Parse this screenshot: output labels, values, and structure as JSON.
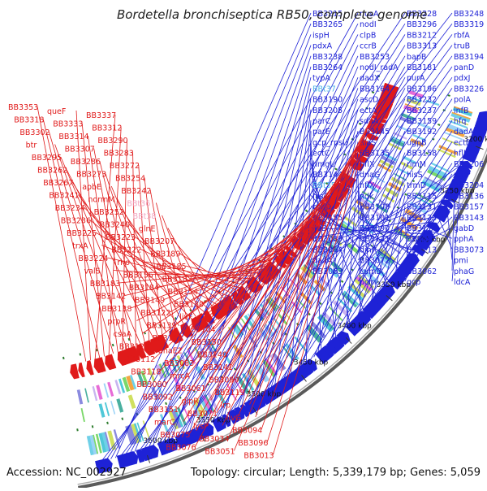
{
  "title": "Bordetella bronchiseptica RB50, complete genome",
  "footer": {
    "accession": "Accession: NC_002927",
    "summary": "Topology: circular; Length: 5,339,179 bp; Genes: 5,059"
  },
  "colors": {
    "backbone": "#808080",
    "forward_strand": "#1e22d6",
    "reverse_strand": "#e01a1a",
    "rna_label": "#4fb3e8",
    "rna_label_reverse": "#f2a6c0",
    "tick": "#2e7d2e"
  },
  "ruler_ticks": [
    "3600 kbp",
    "3550 kbp",
    "3500 kbp",
    "3450 kbp",
    "3400 kbp",
    "3350 kbp",
    "3300 kbp",
    "3250 kbp",
    "3200 kbp"
  ],
  "forward_labels": [
    "BB3248",
    "BB3228",
    "nusA",
    "BB3215",
    "BB3319",
    "BB3296",
    "nodI",
    "BB3265",
    "rbfA",
    "BB3212",
    "clpB",
    "ispH",
    "truB",
    "BB3313",
    "ccrB",
    "pdxA",
    "BB3194",
    "bapB",
    "BB3253",
    "BB3238",
    "panD",
    "BB3181",
    "nodI_radA",
    "BB3264",
    "pdxJ",
    "purA",
    "dadX",
    "typA",
    "BB3226",
    "BB3196",
    "BB3164",
    "BBt37",
    "polA",
    "BB3232",
    "ascD",
    "BB3190",
    "infB",
    "BB3237",
    "ectA",
    "BB3205",
    "hfq",
    "BB3159",
    "sdaA",
    "parC",
    "dadA",
    "BB3192",
    "BB3145",
    "parE",
    "ectB",
    "ugpB",
    "alaS",
    "gcp_rpsU",
    "hflK",
    "BB3158",
    "BB3135",
    "ectC",
    "BB3206",
    "rimM",
    "hflX",
    "hmgL",
    "rpsP",
    "hisS",
    "dnaG",
    "BB3144",
    "BB3204",
    "trmD",
    "hflX",
    "BBt35",
    "BB3136",
    "BB3115",
    "ndk",
    "hisZ",
    "BB3157",
    "BB3131",
    "BB3108",
    "rpoD",
    "BB3143",
    "BB3123",
    "BB3101",
    "BB3155",
    "gabD",
    "BB3114",
    "BB3090",
    "ilvB",
    "pphA",
    "BB3085",
    "BB3121",
    "BB3089",
    "BB3073",
    "BB3113",
    "dinP",
    "BB3064",
    "pmi",
    "fhp",
    "BB3072",
    "dadA",
    "phaG",
    "BB3062",
    "cumB",
    "BB3063",
    "ldcA",
    "gcp",
    "pcm"
  ],
  "reverse_labels": [
    "BB3353",
    "queF",
    "BB3337",
    "BB3318",
    "BB3333",
    "BB3312",
    "BB3302",
    "BB3314",
    "BB3290",
    "btr",
    "BB3307",
    "BB3283",
    "BB3295",
    "BB3286",
    "BB3272",
    "BB3262",
    "BB3273",
    "BB3254",
    "BB3267",
    "apbE",
    "BB3242",
    "BB3241",
    "normM",
    "BBt36",
    "BB3234",
    "BB3252",
    "BBt38",
    "BB3236",
    "BB3240",
    "glnE",
    "BB3225",
    "BB3223",
    "BB3207",
    "trxA",
    "BB3222",
    "BB3189",
    "BB3224",
    "rho",
    "BB3185",
    "valS",
    "BB3156",
    "BB3182",
    "BB3183",
    "BB3184",
    "BB3154",
    "BB3142",
    "BB3149",
    "BB3130",
    "BB3138",
    "BB3122",
    "livF",
    "prpR",
    "BB3139",
    "BB3104",
    "csaA",
    "BB3103",
    "BB3150",
    "BB3129",
    "dnaE2",
    "BB3140",
    "BB3112",
    "BB3083",
    "BB3141",
    "BB3118",
    "mrcA",
    "BB3099",
    "BB3080",
    "BB3061",
    "BB3119",
    "BB3092",
    "glpR",
    "lrp",
    "BB3151",
    "BB3071",
    "livG",
    "marC",
    "lysP",
    "BB3094",
    "BB3075",
    "BB3034",
    "BB3096",
    "BB3076",
    "BB3051",
    "BB3013",
    "BB3100"
  ]
}
